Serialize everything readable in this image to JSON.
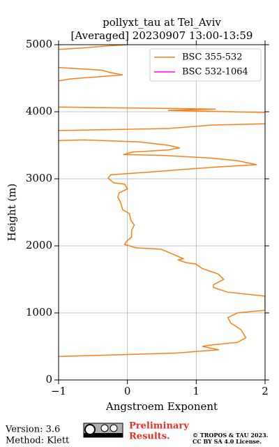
{
  "chart_data": {
    "type": "line",
    "title": "pollyxt_tau at Tel_Aviv",
    "subtitle": "[Averaged] 20230907 13:00-13:59",
    "x_label": "Angstroem Exponent",
    "y_label": "Height (m)",
    "xlim": [
      -1,
      2
    ],
    "xticks": [
      {
        "value": -1,
        "label": "−1"
      },
      0,
      1,
      2
    ],
    "ylim": [
      0,
      5000
    ],
    "yticks": [
      0,
      1000,
      2000,
      3000,
      4000,
      5000
    ],
    "grid": true,
    "legend": "upper right",
    "y": [
      350,
      400,
      450,
      500,
      520,
      560,
      630,
      750,
      850,
      930,
      1000,
      1040,
      1250,
      1310,
      1380,
      1420,
      1500,
      1580,
      1660,
      1730,
      1750,
      1790,
      1810,
      1850,
      1950,
      1970,
      2020,
      2060,
      2130,
      2230,
      2310,
      2380,
      2480,
      2540,
      2650,
      2730,
      2790,
      2850,
      2920,
      2940,
      3010,
      3060,
      3090,
      3170,
      3210,
      3270,
      3310,
      3350,
      3360,
      3400,
      3430,
      3460,
      3500,
      3550,
      3580,
      3570,
      null,
      3720,
      3750,
      3800,
      3820,
      null,
      3990,
      4020,
      4040,
      4070,
      null,
      4460,
      4490,
      4550,
      4590,
      4620,
      4660,
      null,
      4930,
      4960,
      4980,
      5000
    ],
    "series": [
      {
        "name": "BSC 355-532",
        "color": "#ff7f0e",
        "values": [
          -1.0,
          0.69,
          1.33,
          1.09,
          1.2,
          1.6,
          1.72,
          1.65,
          1.5,
          1.46,
          1.6,
          2.0,
          2.0,
          1.45,
          1.25,
          1.25,
          1.4,
          1.32,
          1.09,
          0.99,
          0.85,
          0.74,
          0.81,
          0.72,
          0.49,
          0.13,
          -0.04,
          -0.02,
          0.06,
          0.06,
          0.1,
          0.05,
          0.03,
          -0.07,
          -0.1,
          -0.14,
          -0.12,
          0.0,
          -0.04,
          -0.2,
          -0.28,
          -0.24,
          0.18,
          1.2,
          1.88,
          1.6,
          1.2,
          0.49,
          -0.06,
          0.08,
          0.59,
          0.76,
          0.59,
          0.18,
          -0.63,
          -1.0,
          null,
          -1.0,
          0.59,
          1.2,
          2.0,
          null,
          2.0,
          0.59,
          1.28,
          -1.0,
          null,
          -1.0,
          -0.83,
          -0.07,
          -0.27,
          -0.37,
          -1.0,
          null,
          -1.0,
          -0.53,
          -0.32,
          0.0
        ]
      },
      {
        "name": "BSC 532-1064",
        "color": "#ff00ff",
        "values": [
          null,
          null,
          null,
          null,
          null,
          null,
          null,
          null,
          null,
          null,
          null,
          null,
          null,
          null,
          null,
          null,
          null,
          null,
          null,
          null,
          null,
          null,
          null,
          null,
          null,
          null,
          null,
          null,
          null,
          null,
          null,
          null,
          null,
          null,
          null,
          null,
          null,
          null,
          null,
          null,
          null,
          null,
          null,
          null,
          null,
          null,
          null,
          null,
          null,
          null,
          null,
          null,
          null,
          null,
          null,
          null,
          null,
          null,
          null,
          null,
          null,
          null,
          null,
          null,
          null,
          null,
          null,
          null,
          null,
          null,
          null,
          null,
          null,
          null,
          null,
          null,
          null,
          null
        ]
      }
    ]
  },
  "footer": {
    "version": "Version: 3.6",
    "method": "Method: Klett",
    "preliminary": [
      "Preliminary",
      "Results."
    ],
    "copyright": [
      "© TROPOS & TAU 2023.",
      "CC BY SA 4.0 License."
    ]
  }
}
